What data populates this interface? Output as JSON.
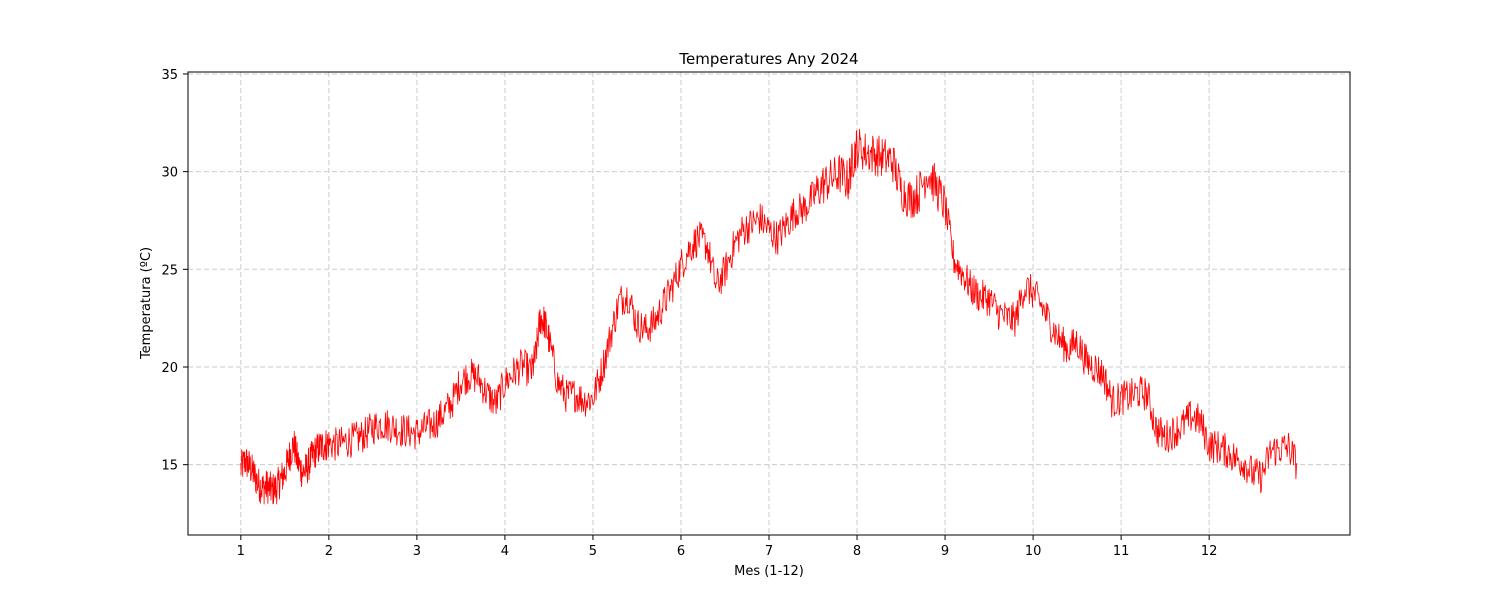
{
  "chart_data": {
    "type": "line",
    "title": "Temperatures Any 2024",
    "xlabel": "Mes (1-12)",
    "ylabel": "Temperatura (ºC)",
    "xlim": [
      0.4,
      13.6
    ],
    "ylim": [
      11.4,
      35.1
    ],
    "x_ticks": [
      1,
      2,
      3,
      4,
      5,
      6,
      7,
      8,
      9,
      10,
      11,
      12
    ],
    "x_tick_labels": [
      "1",
      "2",
      "3",
      "4",
      "5",
      "6",
      "7",
      "8",
      "9",
      "10",
      "11",
      "12"
    ],
    "y_ticks": [
      15,
      20,
      25,
      30,
      35
    ],
    "y_tick_labels": [
      "15",
      "20",
      "25",
      "30",
      "35"
    ],
    "grid": true,
    "series": [
      {
        "color": "#ff0000",
        "x": [
          1.0,
          1.05,
          1.1,
          1.15,
          1.2,
          1.25,
          1.3,
          1.35,
          1.4,
          1.45,
          1.5,
          1.55,
          1.6,
          1.65,
          1.7,
          1.75,
          1.8,
          1.85,
          1.9,
          1.95,
          2.0,
          2.1,
          2.2,
          2.3,
          2.4,
          2.5,
          2.6,
          2.7,
          2.8,
          2.9,
          3.0,
          3.1,
          3.2,
          3.3,
          3.4,
          3.5,
          3.6,
          3.7,
          3.8,
          3.9,
          4.0,
          4.1,
          4.2,
          4.3,
          4.35,
          4.4,
          4.45,
          4.5,
          4.6,
          4.7,
          4.8,
          4.9,
          5.0,
          5.1,
          5.2,
          5.3,
          5.4,
          5.5,
          5.6,
          5.7,
          5.8,
          5.9,
          6.0,
          6.1,
          6.2,
          6.3,
          6.4,
          6.5,
          6.6,
          6.7,
          6.8,
          6.9,
          7.0,
          7.1,
          7.2,
          7.3,
          7.4,
          7.5,
          7.6,
          7.7,
          7.8,
          7.9,
          7.95,
          8.0,
          8.1,
          8.2,
          8.3,
          8.4,
          8.5,
          8.6,
          8.7,
          8.8,
          8.9,
          9.0,
          9.1,
          9.2,
          9.3,
          9.4,
          9.5,
          9.6,
          9.7,
          9.8,
          9.9,
          10.0,
          10.1,
          10.2,
          10.3,
          10.4,
          10.5,
          10.6,
          10.7,
          10.8,
          10.9,
          11.0,
          11.1,
          11.2,
          11.3,
          11.4,
          11.5,
          11.6,
          11.7,
          11.8,
          11.9,
          12.0,
          12.1,
          12.2,
          12.3,
          12.4,
          12.5,
          12.6,
          12.7,
          12.8,
          12.9,
          13.0
        ],
        "y": [
          14.8,
          15.2,
          14.9,
          14.5,
          14.0,
          13.8,
          13.9,
          13.7,
          13.8,
          14.2,
          14.6,
          15.4,
          16.1,
          15.1,
          14.6,
          14.8,
          15.3,
          15.7,
          15.9,
          16.0,
          16.1,
          16.0,
          16.2,
          16.3,
          16.5,
          16.9,
          17.1,
          17.0,
          16.8,
          16.7,
          16.6,
          16.9,
          17.1,
          17.6,
          18.2,
          19.3,
          19.6,
          19.4,
          18.6,
          18.1,
          19.2,
          19.7,
          20.1,
          19.7,
          20.6,
          22.5,
          22.3,
          21.4,
          19.2,
          18.5,
          18.6,
          18.3,
          18.4,
          19.8,
          21.6,
          23.4,
          23.7,
          22.2,
          21.9,
          22.3,
          23.2,
          24.1,
          25.2,
          26.1,
          26.6,
          26.2,
          24.1,
          24.9,
          26.2,
          27.0,
          27.3,
          27.6,
          27.0,
          26.6,
          27.3,
          28.0,
          28.1,
          28.7,
          29.3,
          29.6,
          29.9,
          29.5,
          30.6,
          31.3,
          31.0,
          30.9,
          30.7,
          30.6,
          29.1,
          28.6,
          28.9,
          30.0,
          29.2,
          28.2,
          25.5,
          24.8,
          24.0,
          23.6,
          23.5,
          22.8,
          22.5,
          22.4,
          24.1,
          23.8,
          23.1,
          22.2,
          21.4,
          20.9,
          21.3,
          20.3,
          20.0,
          19.6,
          18.2,
          18.4,
          18.5,
          18.7,
          18.6,
          16.8,
          16.4,
          16.7,
          17.0,
          17.5,
          17.2,
          16.0,
          15.9,
          15.7,
          15.3,
          15.1,
          14.5,
          14.4,
          15.7,
          15.8,
          15.9,
          15.0
        ]
      }
    ]
  }
}
